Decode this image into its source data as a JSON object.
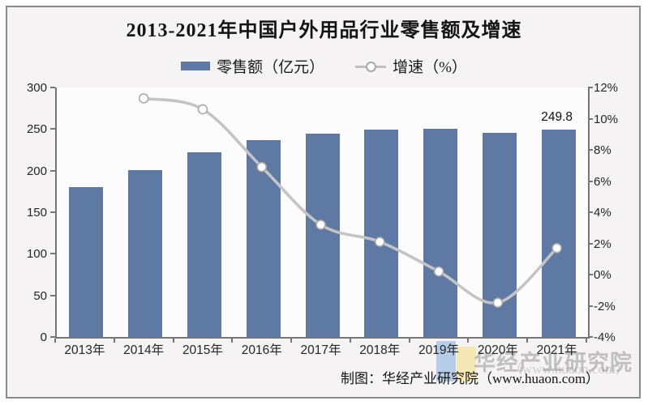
{
  "page": {
    "frame_border_color": "#8a8a8a",
    "frame_background": "#f5f3f4"
  },
  "chart_data": {
    "type": "bar+line",
    "title": "2013-2021年中国户外用品行业零售额及增速",
    "categories": [
      "2013年",
      "2014年",
      "2015年",
      "2016年",
      "2017年",
      "2018年",
      "2019年",
      "2020年",
      "2021年"
    ],
    "series": [
      {
        "name": "零售额（亿元）",
        "type": "bar",
        "yaxis": "left",
        "color": "#5e7aa4",
        "values": [
          180.5,
          200.8,
          221.9,
          236.9,
          244.6,
          249.8,
          250.2,
          245.4,
          249.8
        ]
      },
      {
        "name": "增速（%）",
        "type": "line",
        "yaxis": "right",
        "color": "#c4c4c4",
        "marker": "open-circle",
        "values": [
          null,
          11.3,
          10.6,
          6.9,
          3.2,
          2.1,
          0.2,
          -1.8,
          1.7
        ]
      }
    ],
    "left_axis": {
      "min": 0,
      "max": 300,
      "step": 50,
      "labels": [
        "300",
        "250",
        "200",
        "150",
        "100",
        "50",
        "0"
      ]
    },
    "right_axis": {
      "min": -4,
      "max": 12,
      "step": 2,
      "labels": [
        "12%",
        "10%",
        "8%",
        "6%",
        "4%",
        "2%",
        "0%",
        "-2%",
        "-4%"
      ]
    },
    "data_labels": [
      {
        "series": 0,
        "index": 8,
        "text": "249.8"
      }
    ],
    "grid": false,
    "legend_position": "top-center",
    "line_smooth": true
  },
  "watermark": {
    "big_text": "华经产业研究院",
    "url_ghost": "（www.huaon.com）"
  },
  "source": {
    "text": "制图：华经产业研究院（www.huaon.com）"
  }
}
